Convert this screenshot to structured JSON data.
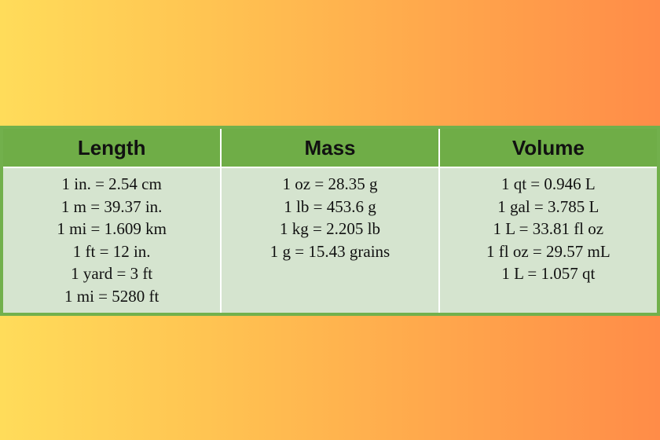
{
  "colors": {
    "header_bg": "#6fad47",
    "cell_bg": "#d5e4cf",
    "frame": "#72b04c",
    "bg_left": "#ffdc5a",
    "bg_right": "#ff8c48"
  },
  "table": {
    "columns": [
      {
        "header": "Length",
        "rows": [
          "1 in. = 2.54 cm",
          "1 m = 39.37 in.",
          "1 mi = 1.609 km",
          "1 ft = 12 in.",
          "1 yard = 3 ft",
          "1 mi = 5280 ft"
        ]
      },
      {
        "header": "Mass",
        "rows": [
          "1 oz = 28.35 g",
          "1 lb = 453.6 g",
          "1 kg = 2.205 lb",
          "1 g = 15.43 grains"
        ]
      },
      {
        "header": "Volume",
        "rows": [
          "1 qt = 0.946 L",
          "1 gal = 3.785 L",
          "1 L = 33.81 fl oz",
          "1 fl oz = 29.57 mL",
          "1 L = 1.057 qt"
        ]
      }
    ]
  }
}
